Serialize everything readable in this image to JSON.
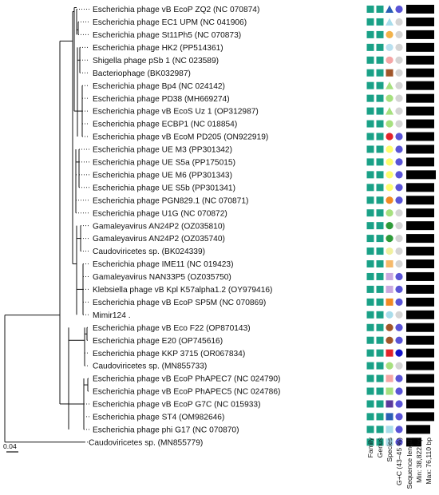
{
  "colors": {
    "family": "#1aa187",
    "genus": "#1aa187",
    "length_bar": "#000000",
    "gc_low": "#d4d4d4",
    "gc_mid": "#5a54d6",
    "gc_high": "#1414c8"
  },
  "scale_bar": {
    "label": "0.04"
  },
  "columns": {
    "family": "Family",
    "genus": "Genus",
    "species": "Species",
    "gc": "G+C (43–45 %)",
    "length": "Sequence length",
    "length_min": "Min: 38,822 bp",
    "length_max": "Max: 76,110 bp"
  },
  "taxa": [
    {
      "label": "Escherichia phage vB EcoP ZQ2 (NC 070874)",
      "species": {
        "shape": "triangle",
        "color": "#2a5fb5"
      },
      "gc": "#5a54d6",
      "length": 0.95
    },
    {
      "label": "Escherichia phage EC1 UPM (NC 041906)",
      "species": {
        "shape": "triangle",
        "color": "#a8dcea"
      },
      "gc": "#d4d4d4",
      "length": 0.95
    },
    {
      "label": "Escherichia phage St11Ph5 (NC 070873)",
      "species": {
        "shape": "circle",
        "color": "#f2b24a"
      },
      "gc": "#d4d4d4",
      "length": 0.95
    },
    {
      "label": "Escherichia phage HK2 (PP514361)",
      "species": {
        "shape": "circle",
        "color": "#b9e0ef"
      },
      "gc": "#d4d4d4",
      "length": 0.95
    },
    {
      "label": "Shigella phage pSb 1 (NC 023589)",
      "species": {
        "shape": "circle",
        "color": "#f4a6a6"
      },
      "gc": "#d4d4d4",
      "length": 0.95
    },
    {
      "label": "Bacteriophage (BK032987)",
      "species": {
        "shape": "square",
        "color": "#a0562a"
      },
      "gc": "#d4d4d4",
      "length": 0.95
    },
    {
      "label": "Escherichia phage Bp4 (NC 024142)",
      "species": {
        "shape": "triangle",
        "color": "#a6e07f"
      },
      "gc": "#d4d4d4",
      "length": 0.95
    },
    {
      "label": "Escherichia phage PD38 (MH669274)",
      "species": {
        "shape": "circle",
        "color": "#a6e07f"
      },
      "gc": "#d4d4d4",
      "length": 0.95
    },
    {
      "label": "Escherichia phage vB EcoS Uz 1 (OP312987)",
      "species": {
        "shape": "triangle",
        "color": "#a6e07f"
      },
      "gc": "#d4d4d4",
      "length": 0.95
    },
    {
      "label": "Escherichia phage ECBP1 (NC 018854)",
      "species": {
        "shape": "circle",
        "color": "#a6e07f"
      },
      "gc": "#d4d4d4",
      "length": 0.95
    },
    {
      "label": "Escherichia phage vB EcoM PD205 (ON922919)",
      "species": {
        "shape": "circle",
        "color": "#e3242b"
      },
      "gc": "#5a54d6",
      "length": 0.95
    },
    {
      "label": "Escherichia phage UE M3 (PP301342)",
      "species": {
        "shape": "circle",
        "color": "#fdfd6e"
      },
      "gc": "#5a54d6",
      "length": 0.95
    },
    {
      "label": "Escherichia phage UE S5a (PP175015)",
      "species": {
        "shape": "circle",
        "color": "#fdfd6e"
      },
      "gc": "#5a54d6",
      "length": 0.95
    },
    {
      "label": "Escherichia phage UE M6 (PP301343)",
      "species": {
        "shape": "circle",
        "color": "#fdfd6e"
      },
      "gc": "#5a54d6",
      "length": 1.0
    },
    {
      "label": "Escherichia phage UE S5b (PP301341)",
      "species": {
        "shape": "circle",
        "color": "#fdfd6e"
      },
      "gc": "#5a54d6",
      "length": 0.95
    },
    {
      "label": "Escherichia phage PGN829.1 (NC 070871)",
      "species": {
        "shape": "circle",
        "color": "#f08a24"
      },
      "gc": "#5a54d6",
      "length": 0.95
    },
    {
      "label": "Escherichia phage U1G (NC 070872)",
      "species": {
        "shape": "circle",
        "color": "#a6e07f"
      },
      "gc": "#d4d4d4",
      "length": 0.95
    },
    {
      "label": "Gamaleyavirus AN24P2 (OZ035810)",
      "species": {
        "shape": "circle",
        "color": "#2e9b3a"
      },
      "gc": "#d4d4d4",
      "length": 0.95
    },
    {
      "label": "Gamaleyavirus AN24P2 (OZ035740)",
      "species": {
        "shape": "circle",
        "color": "#2e9b3a"
      },
      "gc": "#d4d4d4",
      "length": 0.95
    },
    {
      "label": "Caudoviricetes sp. (BK024339)",
      "species": {
        "shape": "circle",
        "color": "#f0f0a0"
      },
      "gc": "#d4d4d4",
      "length": 0.95
    },
    {
      "label": "Escherichia phage IME11 (NC 019423)",
      "species": {
        "shape": "square",
        "color": "#f6b96a"
      },
      "gc": "#d4d4d4",
      "length": 0.95
    },
    {
      "label": "Gamaleyavirus NAN33P5 (OZ035750)",
      "species": {
        "shape": "square",
        "color": "#c8a8e0"
      },
      "gc": "#5a54d6",
      "length": 0.95
    },
    {
      "label": "Klebsiella phage vB Kpl K57alpha1.2 (OY979416)",
      "species": {
        "shape": "square",
        "color": "#c8a8e0"
      },
      "gc": "#5a54d6",
      "length": 0.95
    },
    {
      "label": "Escherichia phage vB EcoP SP5M (NC 070869)",
      "species": {
        "shape": "square",
        "color": "#f08a24"
      },
      "gc": "#5a54d6",
      "length": 0.95
    },
    {
      "label": "Mimir124 .",
      "species": {
        "shape": "circle",
        "color": "#a8dcea"
      },
      "gc": "#d4d4d4",
      "length": 0.95
    },
    {
      "label": "Escherichia phage vB Eco F22 (OP870143)",
      "species": {
        "shape": "circle",
        "color": "#a0562a"
      },
      "gc": "#5a54d6",
      "length": 0.95
    },
    {
      "label": "Escherichia phage E20 (OP745616)",
      "species": {
        "shape": "circle",
        "color": "#a0562a"
      },
      "gc": "#5a54d6",
      "length": 0.95
    },
    {
      "label": "Escherichia phage KKP 3715 (OR067834)",
      "species": {
        "shape": "square",
        "color": "#e3242b"
      },
      "gc": "#1414c8",
      "length": 0.95
    },
    {
      "label": "Caudoviricetes sp. (MN855733)",
      "species": {
        "shape": "circle",
        "color": "#a6e07f"
      },
      "gc": "#d4d4d4",
      "length": 0.95
    },
    {
      "label": "Escherichia phage vB EcoP PhAPEC7 (NC 024790)",
      "species": {
        "shape": "square",
        "color": "#f4a6a6"
      },
      "gc": "#5a54d6",
      "length": 0.95
    },
    {
      "label": "Escherichia phage vB EcoP PhAPEC5 (NC 024786)",
      "species": {
        "shape": "square",
        "color": "#a6e07f"
      },
      "gc": "#5a54d6",
      "length": 0.95
    },
    {
      "label": "Escherichia phage vB EcoP G7C (NC 015933)",
      "species": {
        "shape": "square",
        "color": "#5b3a9b"
      },
      "gc": "#5a54d6",
      "length": 0.95
    },
    {
      "label": "Escherichia phage ST4 (OM982646)",
      "species": {
        "shape": "square",
        "color": "#2a5fb5"
      },
      "gc": "#5a54d6",
      "length": 0.95
    },
    {
      "label": "Escherichia phage phi G17 (NC 070870)",
      "species": {
        "shape": "square",
        "color": "#a8dcea"
      },
      "gc": "#5a54d6",
      "length": 0.8
    },
    {
      "label": "Caudoviricetes sp. (MN855779)",
      "species": {
        "shape": "square",
        "color": "#a8dcea"
      },
      "gc": "#5a54d6",
      "length": 0.5
    }
  ]
}
